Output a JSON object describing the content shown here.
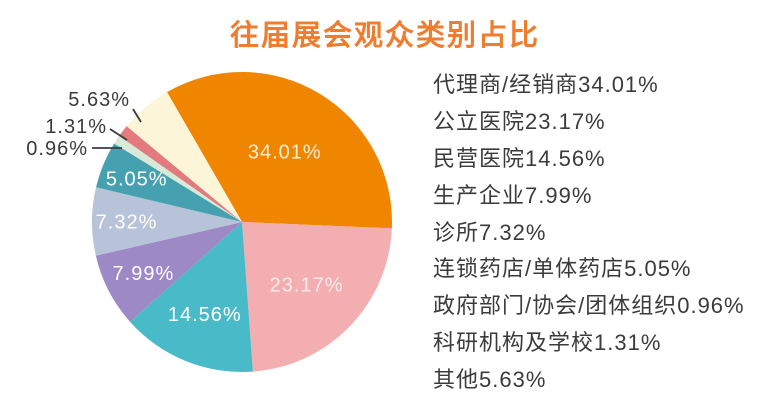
{
  "title": "往届展会观众类别占比",
  "colors": {
    "title": "#EE7D2F",
    "text": "#3B3B3B",
    "background": "#FFFFFF",
    "callout_line": "#3B3B3B"
  },
  "chart_data": {
    "type": "pie",
    "title": "往届展会观众类别占比",
    "start_angle_deg": 120,
    "direction": "clockwise",
    "legend_position": "right",
    "grid": false,
    "slices": [
      {
        "label": "代理商/经销商",
        "value": 34.01,
        "color": "#F08600",
        "label_color": "#FAEFCF",
        "label_placement": "inside"
      },
      {
        "label": "公立医院",
        "value": 23.17,
        "color": "#F3AEB2",
        "label_color": "#FCE9E8",
        "label_placement": "inside"
      },
      {
        "label": "民营医院",
        "value": 14.56,
        "color": "#49BAC8",
        "label_color": "#FFFFFF",
        "label_placement": "inside"
      },
      {
        "label": "生产企业",
        "value": 7.99,
        "color": "#9C89C6",
        "label_color": "#FFFFFF",
        "label_placement": "inside"
      },
      {
        "label": "诊所",
        "value": 7.32,
        "color": "#B7C3D9",
        "label_color": "#FFFFFF",
        "label_placement": "inside"
      },
      {
        "label": "连锁药店/单体药店",
        "value": 5.05,
        "color": "#45A1AF",
        "label_color": "#FFFFFF",
        "label_placement": "inside"
      },
      {
        "label": "政府部门/协会/团体组织",
        "value": 0.96,
        "color": "#D8E9D8",
        "label_color": "#3B3B3B",
        "label_placement": "callout"
      },
      {
        "label": "科研机构及学校",
        "value": 1.31,
        "color": "#E27A7E",
        "label_color": "#3B3B3B",
        "label_placement": "callout"
      },
      {
        "label": "其他",
        "value": 5.63,
        "color": "#FCF5D8",
        "label_color": "#3B3B3B",
        "label_placement": "callout"
      }
    ],
    "legend_items": [
      "代理商/经销商34.01%",
      "公立医院23.17%",
      "民营医院14.56%",
      "生产企业7.99%",
      "诊所7.32%",
      "连锁药店/单体药店5.05%",
      "政府部门/协会/团体组织0.96%",
      "科研机构及学校1.31%",
      "其他5.63%"
    ],
    "callout_labels": [
      "0.96%",
      "1.31%",
      "5.63%"
    ]
  }
}
